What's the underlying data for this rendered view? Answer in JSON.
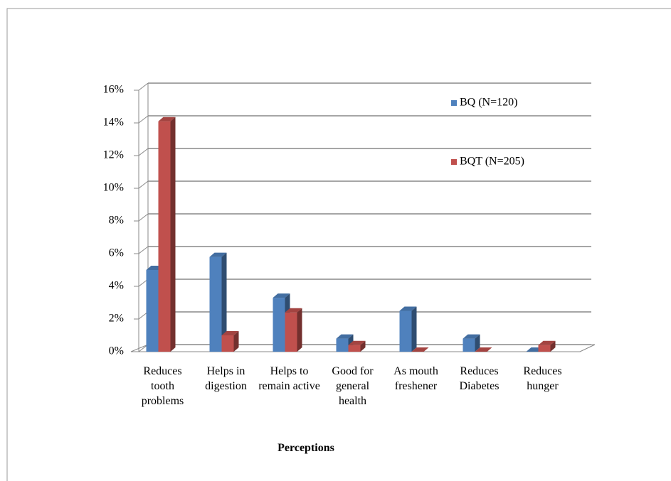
{
  "chart_data": {
    "type": "bar3d",
    "xlabel": "Perceptions",
    "categories": [
      "Reduces tooth problems",
      "Helps in digestion",
      "Helps to remain active",
      "Good for general health",
      "As mouth freshener",
      "Reduces Diabetes",
      "Reduces hunger"
    ],
    "series": [
      {
        "name": "BQ (N=120)",
        "color": "#4f81bd",
        "values": [
          5,
          5.8,
          3.3,
          0.8,
          2.5,
          0.8,
          0
        ]
      },
      {
        "name": "BQT (N=205)",
        "color": "#c0504d",
        "values": [
          14.1,
          1,
          2.4,
          0.4,
          0,
          0,
          0.4
        ]
      }
    ],
    "ylim": [
      0,
      16
    ],
    "yticks": [
      {
        "value": 0,
        "label": "0%"
      },
      {
        "value": 2,
        "label": "2%"
      },
      {
        "value": 4,
        "label": "4%"
      },
      {
        "value": 6,
        "label": "6%"
      },
      {
        "value": 8,
        "label": "8%"
      },
      {
        "value": 10,
        "label": "10%"
      },
      {
        "value": 12,
        "label": "12%"
      },
      {
        "value": 14,
        "label": "14%"
      },
      {
        "value": 16,
        "label": "16%"
      }
    ],
    "grid": true
  }
}
